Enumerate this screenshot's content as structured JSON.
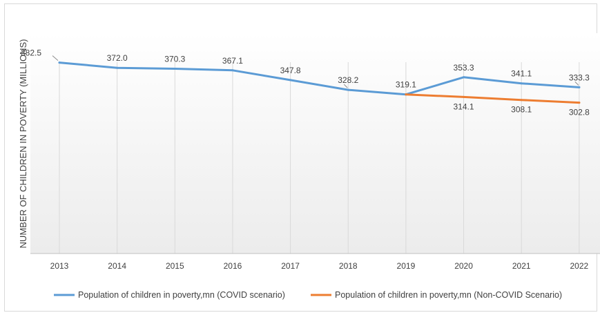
{
  "chart_data": {
    "type": "line",
    "title": "",
    "xlabel": "",
    "ylabel": "NUMBER OF CHILDREN IN POVERTY (MILLIONS)",
    "categories": [
      "2013",
      "2014",
      "2015",
      "2016",
      "2017",
      "2018",
      "2019",
      "2020",
      "2021",
      "2022"
    ],
    "ylim": [
      0,
      400
    ],
    "grid": "vertical",
    "legend": "bottom",
    "series": [
      {
        "name": "Population of children in poverty,mn (COVID scenario)",
        "color": "#5b9bd5",
        "values": [
          382.5,
          372.0,
          370.3,
          367.1,
          347.8,
          328.2,
          319.1,
          353.3,
          341.1,
          333.3
        ],
        "labels": [
          "382.5",
          "372.0",
          "370.3",
          "367.1",
          "347.8",
          "328.2",
          "319.1",
          "353.3",
          "341.1",
          "333.3"
        ]
      },
      {
        "name": "Population of children in poverty,mn (Non-COVID Scenario)",
        "color": "#ed7d31",
        "values": [
          null,
          null,
          null,
          null,
          null,
          null,
          319.1,
          314.1,
          308.1,
          302.8
        ],
        "labels": [
          "",
          "",
          "",
          "",
          "",
          "",
          "",
          "314.1",
          "308.1",
          "302.8"
        ]
      }
    ]
  }
}
